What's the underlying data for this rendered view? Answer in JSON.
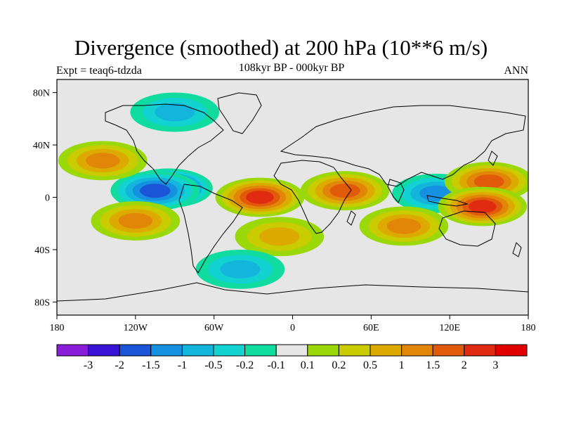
{
  "title": "Divergence (smoothed) at 200 hPa (10**6 m/s)",
  "subtitle": "108kyr BP - 000kyr BP",
  "experiment": "Expt = teaq6-tdzda",
  "season": "ANN",
  "map": {
    "projection": "cylindrical-equidistant",
    "lon_range": [
      -180,
      180
    ],
    "lat_range": [
      -90,
      90
    ],
    "lat_ticks": [
      {
        "value": 80,
        "label": "80N"
      },
      {
        "value": 40,
        "label": "40N"
      },
      {
        "value": 0,
        "label": "0"
      },
      {
        "value": -40,
        "label": "40S"
      },
      {
        "value": -80,
        "label": "80S"
      }
    ],
    "lon_ticks": [
      {
        "value": -180,
        "label": "180"
      },
      {
        "value": -120,
        "label": "120W"
      },
      {
        "value": -60,
        "label": "60W"
      },
      {
        "value": 0,
        "label": "0"
      },
      {
        "value": 60,
        "label": "60E"
      },
      {
        "value": 120,
        "label": "120E"
      },
      {
        "value": 180,
        "label": "180"
      }
    ],
    "fields": [
      {
        "name": "east-pacific-convergence-min",
        "lon": -95,
        "lat": 7,
        "value": -3
      },
      {
        "name": "east-pacific-convergence-halo",
        "lon": -105,
        "lat": 5,
        "value": -1.5
      },
      {
        "name": "maritime-continent-convergence",
        "lon": 110,
        "lat": 3,
        "value": -1
      },
      {
        "name": "north-pacific-divergence",
        "lon": -145,
        "lat": 28,
        "value": 1
      },
      {
        "name": "south-pacific-divergence",
        "lon": -120,
        "lat": -18,
        "value": 1
      },
      {
        "name": "equatorial-atlantic-divergence",
        "lon": -25,
        "lat": 0,
        "value": 2
      },
      {
        "name": "east-africa-divergence",
        "lon": 40,
        "lat": 5,
        "value": 1.5
      },
      {
        "name": "indian-ocean-divergence",
        "lon": 85,
        "lat": -22,
        "value": 1
      },
      {
        "name": "west-pacific-divergence",
        "lon": 150,
        "lat": 12,
        "value": 1.5
      },
      {
        "name": "new-guinea-divergence",
        "lon": 145,
        "lat": -7,
        "value": 2
      },
      {
        "name": "south-atlantic-divergence",
        "lon": -10,
        "lat": -30,
        "value": 0.5
      },
      {
        "name": "arctic-convergence",
        "lon": -90,
        "lat": 65,
        "value": -0.5
      },
      {
        "name": "southern-ocean-convergence",
        "lon": -40,
        "lat": -55,
        "value": -0.5
      }
    ]
  },
  "colorbar": {
    "colors": [
      "#8a1ed8",
      "#3914d6",
      "#1a55d8",
      "#1690e0",
      "#14b5dc",
      "#12d2d2",
      "#10dca0",
      "#e6e6e6",
      "#9ad80a",
      "#c8cc00",
      "#dcaa00",
      "#e2860a",
      "#e05a0a",
      "#e02a12",
      "#e00000"
    ],
    "labels": [
      "-3",
      "-2",
      "-1.5",
      "-1",
      "-0.5",
      "-0.2",
      "-0.1",
      "0.1",
      "0.2",
      "0.5",
      "1",
      "1.5",
      "2",
      "3"
    ]
  },
  "style": {
    "coastline_color": "#000000",
    "background": "#ffffff"
  }
}
